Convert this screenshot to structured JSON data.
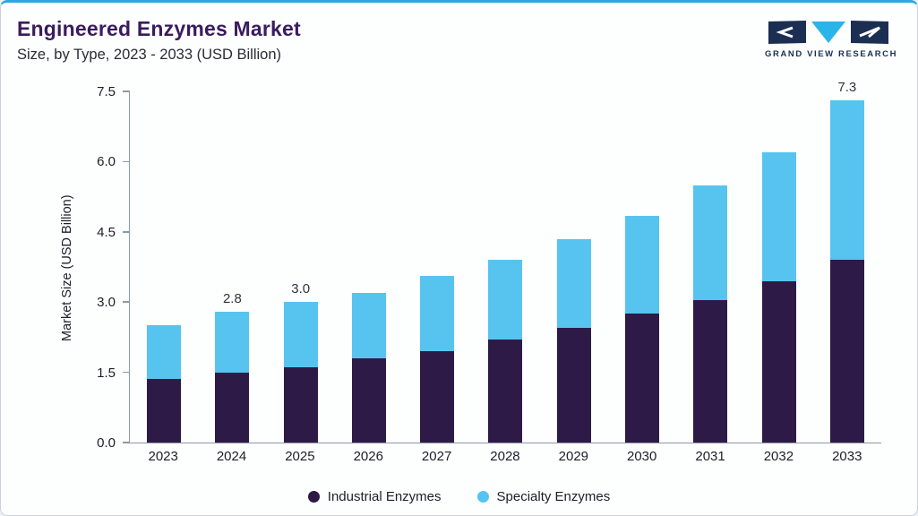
{
  "header": {
    "title": "Engineered Enzymes Market",
    "subtitle": "Size, by Type, 2023 - 2033 (USD Billion)",
    "brand": "GRAND VIEW RESEARCH"
  },
  "chart_data": {
    "type": "bar",
    "stacked": true,
    "title": "Engineered Enzymes Market Size, by Type, 2023 - 2033 (USD Billion)",
    "ylabel": "Market Size (USD Billion)",
    "ylim": [
      0,
      7.5
    ],
    "ytick_labels": [
      "0.0",
      "1.5",
      "3.0",
      "4.5",
      "6.0",
      "7.5"
    ],
    "grid": false,
    "legend_position": "bottom",
    "categories": [
      "2023",
      "2024",
      "2025",
      "2026",
      "2027",
      "2028",
      "2029",
      "2030",
      "2031",
      "2032",
      "2033"
    ],
    "series": [
      {
        "name": "Industrial Enzymes",
        "color": "#2e1a47",
        "values": [
          1.35,
          1.5,
          1.6,
          1.8,
          1.95,
          2.2,
          2.45,
          2.75,
          3.05,
          3.45,
          3.9
        ]
      },
      {
        "name": "Specialty Enzymes",
        "color": "#57c4f0",
        "values": [
          1.15,
          1.3,
          1.4,
          1.4,
          1.6,
          1.7,
          1.9,
          2.1,
          2.45,
          2.75,
          3.4
        ]
      }
    ],
    "totals": [
      2.5,
      2.8,
      3.0,
      3.2,
      3.55,
      3.9,
      4.35,
      4.85,
      5.5,
      6.2,
      7.3
    ],
    "bar_total_labels": [
      "",
      "2.8",
      "3.0",
      "",
      "",
      "",
      "",
      "",
      "",
      "",
      "7.3"
    ]
  },
  "colors": {
    "accent_line": "#2aa9e0",
    "title_text": "#3b1b5e",
    "industrial": "#2e1a47",
    "specialty": "#57c4f0",
    "logo_navy": "#1c2e52",
    "logo_cyan": "#2ab4e8",
    "axis_line": "#8a9aa8"
  }
}
